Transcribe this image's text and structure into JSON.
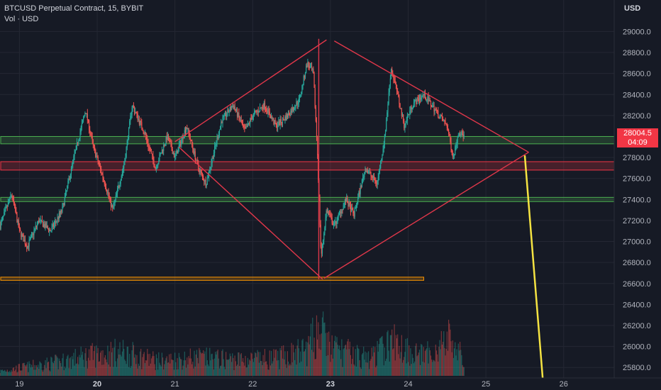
{
  "header": {
    "symbol_line": "BTCUSD Perpetual Contract, 15, BYBIT",
    "volume_line": "Vol · USD"
  },
  "price_axis": {
    "currency": "USD",
    "current_price": "28004.5",
    "countdown": "04:09"
  },
  "colors": {
    "background": "#161a25",
    "up": "#26a69a",
    "down": "#ef5350",
    "drawing_red": "#e0374a",
    "zone_green": "#4caf50",
    "zone_red": "#f23645",
    "zone_orange": "#ff9800",
    "arrow_yellow": "#f5e342"
  },
  "chart_data": {
    "type": "candlestick",
    "ylim": [
      25700,
      29300
    ],
    "yticks": [
      25800,
      26000,
      26200,
      26400,
      26600,
      26800,
      27000,
      27200,
      27400,
      27600,
      27800,
      28000,
      28200,
      28400,
      28600,
      28800,
      29000
    ],
    "xticks": [
      {
        "label": "19",
        "day": 19.0
      },
      {
        "label": "20",
        "day": 20.0
      },
      {
        "label": "21",
        "day": 21.0
      },
      {
        "label": "22",
        "day": 22.0
      },
      {
        "label": "23",
        "day": 23.0
      },
      {
        "label": "24",
        "day": 24.0
      },
      {
        "label": "25",
        "day": 25.0
      },
      {
        "label": "26",
        "day": 26.0
      }
    ],
    "xlim": [
      18.75,
      26.65
    ],
    "price_path": [
      [
        18.75,
        27150
      ],
      [
        18.9,
        27450
      ],
      [
        19.0,
        27100
      ],
      [
        19.1,
        26950
      ],
      [
        19.25,
        27200
      ],
      [
        19.4,
        27100
      ],
      [
        19.55,
        27300
      ],
      [
        19.7,
        27800
      ],
      [
        19.85,
        28250
      ],
      [
        19.95,
        27900
      ],
      [
        20.1,
        27550
      ],
      [
        20.2,
        27300
      ],
      [
        20.35,
        27750
      ],
      [
        20.45,
        28300
      ],
      [
        20.6,
        28050
      ],
      [
        20.75,
        27700
      ],
      [
        20.9,
        28000
      ],
      [
        21.0,
        27800
      ],
      [
        21.15,
        28100
      ],
      [
        21.3,
        27700
      ],
      [
        21.4,
        27550
      ],
      [
        21.5,
        27850
      ],
      [
        21.6,
        28150
      ],
      [
        21.75,
        28300
      ],
      [
        21.9,
        28050
      ],
      [
        22.0,
        28200
      ],
      [
        22.15,
        28300
      ],
      [
        22.3,
        28100
      ],
      [
        22.45,
        28200
      ],
      [
        22.6,
        28350
      ],
      [
        22.7,
        28700
      ],
      [
        22.78,
        28600
      ],
      [
        22.83,
        27900
      ],
      [
        22.88,
        26850
      ],
      [
        22.95,
        27300
      ],
      [
        23.05,
        27150
      ],
      [
        23.2,
        27400
      ],
      [
        23.3,
        27250
      ],
      [
        23.45,
        27700
      ],
      [
        23.6,
        27550
      ],
      [
        23.7,
        28000
      ],
      [
        23.78,
        28650
      ],
      [
        23.85,
        28450
      ],
      [
        23.95,
        28100
      ],
      [
        24.05,
        28300
      ],
      [
        24.2,
        28400
      ],
      [
        24.35,
        28250
      ],
      [
        24.5,
        28100
      ],
      [
        24.58,
        27800
      ],
      [
        24.65,
        28050
      ],
      [
        24.72,
        28004.5
      ]
    ],
    "volume_path": [
      [
        18.75,
        40
      ],
      [
        19.0,
        70
      ],
      [
        19.5,
        120
      ],
      [
        19.9,
        180
      ],
      [
        20.3,
        210
      ],
      [
        20.8,
        130
      ],
      [
        21.3,
        160
      ],
      [
        21.8,
        140
      ],
      [
        22.3,
        150
      ],
      [
        22.7,
        230
      ],
      [
        22.85,
        420
      ],
      [
        23.0,
        250
      ],
      [
        23.5,
        150
      ],
      [
        23.8,
        300
      ],
      [
        24.2,
        170
      ],
      [
        24.55,
        330
      ],
      [
        24.72,
        120
      ]
    ],
    "annotations": {
      "zones": [
        {
          "color": "green",
          "from": 27930,
          "to": 28000,
          "x_end": "edge"
        },
        {
          "color": "red",
          "from": 27680,
          "to": 27760,
          "x_end": "edge"
        },
        {
          "color": "green",
          "from": 27380,
          "to": 27420,
          "x_end": "edge"
        },
        {
          "color": "orange",
          "from": 26630,
          "to": 26660,
          "x_end_day": 24.2
        }
      ],
      "lines": [
        {
          "color": "red",
          "from": [
            21.0,
            27950
          ],
          "to": [
            22.95,
            28920
          ]
        },
        {
          "color": "red",
          "from": [
            23.05,
            28910
          ],
          "to": [
            25.55,
            27850
          ]
        },
        {
          "color": "red",
          "from": [
            21.05,
            27900
          ],
          "to": [
            22.9,
            26640
          ]
        },
        {
          "color": "red",
          "from": [
            22.92,
            26650
          ],
          "to": [
            25.55,
            27850
          ]
        },
        {
          "color": "red",
          "from": [
            22.85,
            28930
          ],
          "to": [
            22.85,
            26640
          ]
        },
        {
          "color": "yellow",
          "from": [
            25.5,
            27820
          ],
          "to": [
            25.73,
            25700
          ]
        }
      ]
    }
  }
}
